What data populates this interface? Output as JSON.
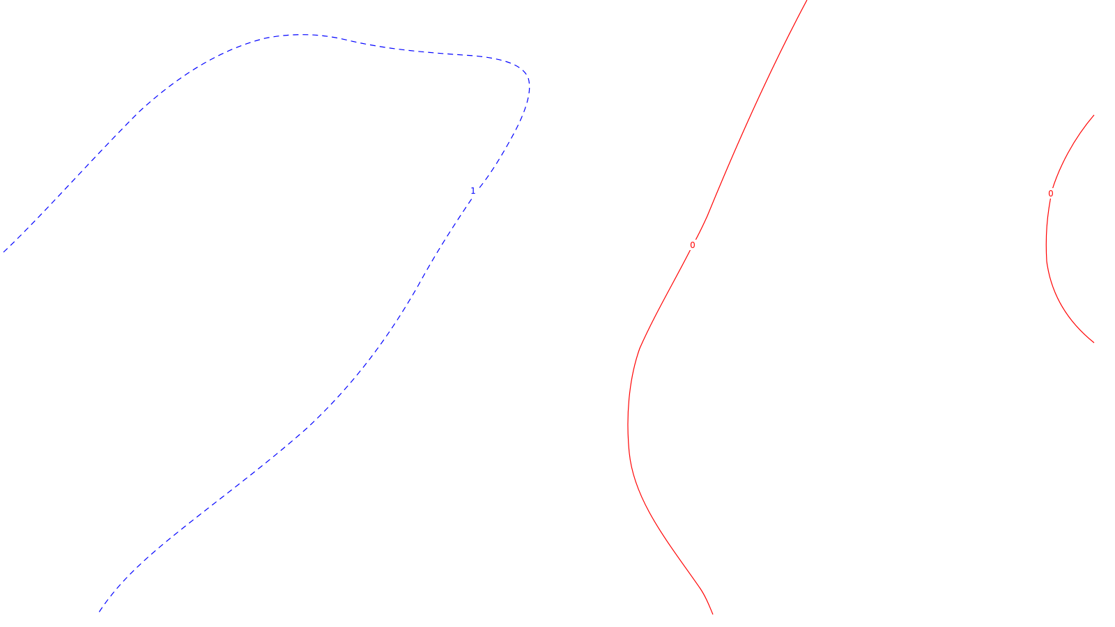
{
  "contours": [
    {
      "level": "1",
      "color": "#0000ff",
      "style": "dashed"
    },
    {
      "level": "0",
      "color": "#ff0000",
      "style": "solid"
    },
    {
      "level": "0",
      "color": "#ff0000",
      "style": "solid"
    }
  ]
}
